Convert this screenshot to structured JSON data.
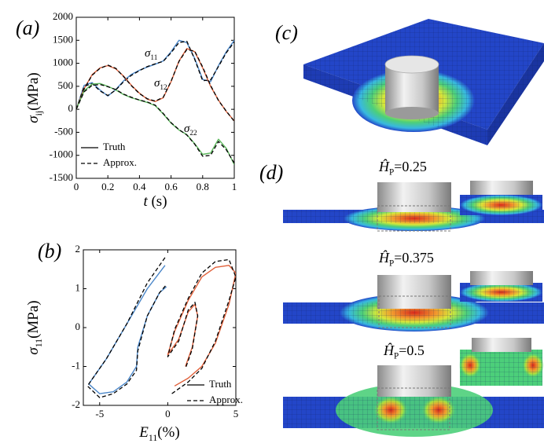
{
  "chart_data": [
    {
      "type": "line",
      "label": "(a)",
      "xlabel": {
        "symbol": "t",
        "unit": "(s)"
      },
      "ylabel": {
        "symbol": "σ",
        "sub": "ij",
        "unit": "(MPa)"
      },
      "x": [
        0,
        0.05,
        0.1,
        0.15,
        0.2,
        0.25,
        0.3,
        0.35,
        0.4,
        0.45,
        0.5,
        0.55,
        0.6,
        0.65,
        0.7,
        0.75,
        0.8,
        0.85,
        0.9,
        0.95,
        1
      ],
      "xlim": [
        0,
        1
      ],
      "xticks": [
        0,
        0.2,
        0.4,
        0.6,
        0.8,
        1
      ],
      "ylim": [
        -1500,
        2000
      ],
      "yticks": [
        -1500,
        -1000,
        -500,
        0,
        500,
        1000,
        1500,
        2000
      ],
      "legend": [
        {
          "name": "Truth",
          "style": "solid"
        },
        {
          "name": "Approx.",
          "style": "dashed"
        }
      ],
      "legend_position": "lower left",
      "series": [
        {
          "label": {
            "symbol": "σ",
            "sub": "11"
          },
          "color": "#4a86c8",
          "style": "solid",
          "values": [
            0,
            520,
            580,
            420,
            290,
            430,
            620,
            760,
            850,
            920,
            980,
            1050,
            1250,
            1500,
            1450,
            1100,
            650,
            600,
            950,
            1250,
            1500
          ]
        },
        {
          "color": "#000000",
          "style": "dashed",
          "values": [
            0,
            500,
            560,
            400,
            300,
            420,
            600,
            740,
            840,
            930,
            990,
            1040,
            1230,
            1450,
            1480,
            1080,
            620,
            640,
            930,
            1230,
            1460
          ]
        },
        {
          "label": {
            "symbol": "σ",
            "sub": "12"
          },
          "color": "#e0603a",
          "style": "solid",
          "values": [
            0,
            450,
            750,
            900,
            950,
            880,
            720,
            520,
            350,
            220,
            170,
            250,
            600,
            1050,
            1320,
            1250,
            900,
            500,
            200,
            -50,
            -250
          ]
        },
        {
          "color": "#000000",
          "style": "dashed",
          "values": [
            0,
            440,
            740,
            890,
            960,
            890,
            710,
            510,
            340,
            230,
            180,
            260,
            610,
            1040,
            1300,
            1260,
            920,
            520,
            190,
            -40,
            -260
          ]
        },
        {
          "label": {
            "symbol": "σ",
            "sub": "22"
          },
          "color": "#5cb85c",
          "style": "solid",
          "values": [
            0,
            400,
            550,
            560,
            500,
            420,
            320,
            250,
            200,
            150,
            80,
            -100,
            -300,
            -450,
            -550,
            -750,
            -980,
            -950,
            -650,
            -850,
            -1200
          ]
        },
        {
          "color": "#000000",
          "style": "dashed",
          "values": [
            0,
            380,
            520,
            540,
            490,
            430,
            330,
            260,
            200,
            160,
            90,
            -90,
            -290,
            -440,
            -560,
            -760,
            -1020,
            -1000,
            -700,
            -880,
            -1170
          ]
        }
      ]
    },
    {
      "type": "line",
      "label": "(b)",
      "xlabel": {
        "symbol": "E",
        "sub": "11",
        "unit": "(%)"
      },
      "ylabel": {
        "symbol": "σ",
        "sub": "11",
        "unit": "(MPa)"
      },
      "xlim": [
        -6.2,
        5
      ],
      "xticks": [
        -5,
        0,
        5
      ],
      "ylim": [
        -2,
        2
      ],
      "yticks": [
        -2,
        -1,
        0,
        1,
        2
      ],
      "legend": [
        {
          "name": "Truth",
          "style": "solid"
        },
        {
          "name": "Approx.",
          "style": "dashed"
        }
      ],
      "legend_position": "lower right",
      "series": [
        {
          "color": "#4a86c8",
          "style": "solid",
          "x": [
            -0.2,
            -1.5,
            -3,
            -4.5,
            -5.8,
            -5,
            -4,
            -3,
            -2.3,
            -2.2,
            -1.5,
            -0.6,
            -0.1
          ],
          "values": [
            1.6,
            1.0,
            0.1,
            -0.8,
            -1.45,
            -1.7,
            -1.65,
            -1.4,
            -1.0,
            -0.5,
            0.3,
            0.9,
            1.05
          ]
        },
        {
          "color": "#000000",
          "style": "dashed",
          "x": [
            -0.2,
            -1.5,
            -3,
            -4.5,
            -5.9,
            -5,
            -4,
            -3,
            -2.3,
            -2.2,
            -1.5,
            -0.6,
            -0.1
          ],
          "values": [
            1.8,
            1.15,
            0.1,
            -0.8,
            -1.5,
            -1.8,
            -1.7,
            -1.45,
            -1.1,
            -0.6,
            0.3,
            0.9,
            1.1
          ]
        },
        {
          "color": "#e0603a",
          "style": "solid",
          "x": [
            0.5,
            1.5,
            2.5,
            3.5,
            4.5,
            5,
            4.5,
            3.5,
            2.5,
            1.5,
            0.5,
            0,
            0.8,
            1.5,
            2,
            2.2,
            1.8,
            1.3
          ],
          "values": [
            -1.5,
            -1.3,
            -1.0,
            -0.4,
            0.6,
            1.4,
            1.6,
            1.55,
            1.3,
            0.7,
            -0.1,
            -0.7,
            -0.3,
            0.4,
            0.6,
            0.3,
            -0.5,
            -1.0
          ]
        },
        {
          "color": "#000000",
          "style": "dashed",
          "x": [
            0.3,
            1.5,
            2.5,
            3.5,
            4.5,
            5,
            4.5,
            3.5,
            2.5,
            1.5,
            0.5,
            0,
            0.8,
            1.5,
            2,
            2.2,
            1.8,
            1.3
          ],
          "values": [
            -1.7,
            -1.4,
            -1.05,
            -0.35,
            0.7,
            1.3,
            1.75,
            1.7,
            1.4,
            0.75,
            -0.05,
            -0.75,
            -0.35,
            0.45,
            0.65,
            0.3,
            -0.55,
            -1.05
          ]
        }
      ]
    }
  ],
  "fe": {
    "c_label": "(c)",
    "d_label": "(d)",
    "cases": [
      {
        "symbol": "Ĥ",
        "sub": "P",
        "text": "=0.25"
      },
      {
        "symbol": "Ĥ",
        "sub": "P",
        "text": "=0.375"
      },
      {
        "symbol": "Ĥ",
        "sub": "P",
        "text": "=0.5"
      }
    ]
  }
}
